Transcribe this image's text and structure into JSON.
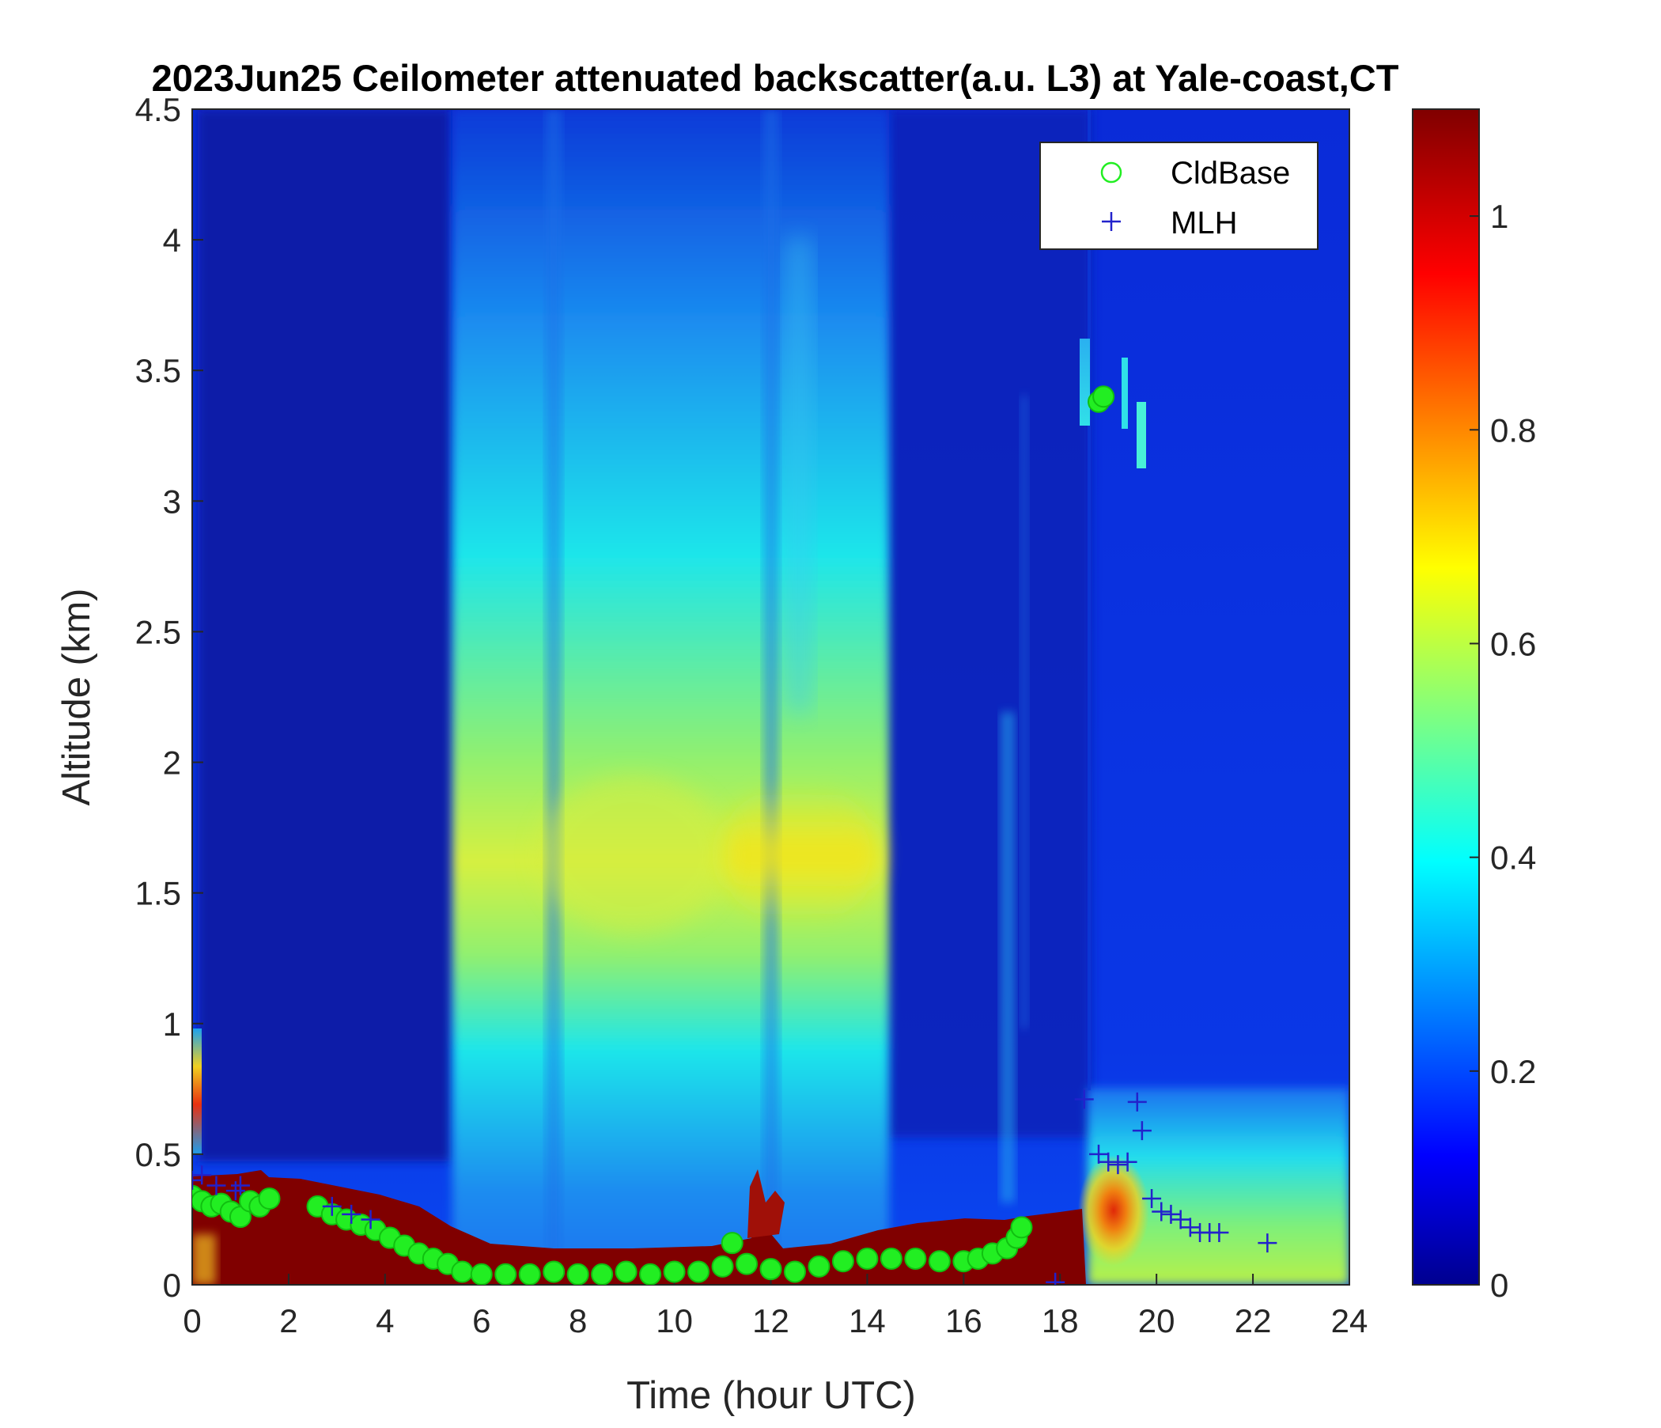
{
  "chart_data": {
    "type": "heatmap",
    "title": "2023Jun25 Ceilometer attenuated backscatter(a.u. L3) at Yale-coast,CT",
    "xlabel": "Time (hour UTC)",
    "ylabel": "Altitude (km)",
    "xlim": [
      0,
      24
    ],
    "ylim": [
      0,
      4.5
    ],
    "xticks": [
      "0",
      "2",
      "4",
      "6",
      "8",
      "10",
      "12",
      "14",
      "16",
      "18",
      "20",
      "22",
      "24"
    ],
    "yticks": [
      "0",
      "0.5",
      "1",
      "1.5",
      "2",
      "2.5",
      "3",
      "3.5",
      "4",
      "4.5"
    ],
    "colorbar": {
      "clim": [
        0,
        1.1
      ],
      "ticks": [
        "0",
        "0.2",
        "0.4",
        "0.6",
        "0.8",
        "1"
      ],
      "colormap": "jet"
    },
    "legend": {
      "position": "top-right",
      "entries": [
        {
          "label": "CldBase",
          "marker": "circle",
          "color": "#22ee22"
        },
        {
          "label": "MLH",
          "marker": "plus",
          "color": "#2222cc"
        }
      ]
    },
    "backscatter_regions": [
      {
        "t0": 5.3,
        "t1": 14.4,
        "z0": 0.0,
        "z1": 4.5,
        "peak": 0.62,
        "z_peak": 1.65,
        "note": "aerosol layer"
      },
      {
        "t0": 18.5,
        "t1": 24.0,
        "z0": 0.0,
        "z1": 0.75,
        "peak": 0.55,
        "z_peak": 0.3,
        "note": "boundary layer"
      },
      {
        "t0": 18.6,
        "t1": 19.9,
        "z0": 3.1,
        "z1": 3.6,
        "peak": 0.4,
        "z_peak": 3.35,
        "note": "thin cloud"
      }
    ],
    "series": [
      {
        "name": "CldBase",
        "marker": "circle",
        "color": "#22ee22",
        "x": [
          0.0,
          0.2,
          0.4,
          0.6,
          0.8,
          1.0,
          1.2,
          1.4,
          1.6,
          2.6,
          2.9,
          3.2,
          3.5,
          3.8,
          4.1,
          4.4,
          4.7,
          5.0,
          5.3,
          5.6,
          6.0,
          6.5,
          7.0,
          7.5,
          8.0,
          8.5,
          9.0,
          9.5,
          10.0,
          10.5,
          11.0,
          11.2,
          11.5,
          12.0,
          12.5,
          13.0,
          13.5,
          14.0,
          14.5,
          15.0,
          15.5,
          16.0,
          16.3,
          16.6,
          16.9,
          17.1,
          17.2,
          18.8,
          18.9
        ],
        "y": [
          0.34,
          0.32,
          0.3,
          0.31,
          0.28,
          0.26,
          0.32,
          0.3,
          0.33,
          0.3,
          0.27,
          0.25,
          0.23,
          0.21,
          0.18,
          0.15,
          0.12,
          0.1,
          0.08,
          0.05,
          0.04,
          0.04,
          0.04,
          0.05,
          0.04,
          0.04,
          0.05,
          0.04,
          0.05,
          0.05,
          0.07,
          0.16,
          0.08,
          0.06,
          0.05,
          0.07,
          0.09,
          0.1,
          0.1,
          0.1,
          0.09,
          0.09,
          0.1,
          0.12,
          0.14,
          0.18,
          0.22,
          3.38,
          3.4
        ]
      },
      {
        "name": "MLH",
        "marker": "plus",
        "color": "#2222cc",
        "x": [
          0.0,
          0.2,
          0.5,
          0.9,
          1.0,
          2.9,
          3.3,
          3.7,
          17.9,
          18.5,
          18.8,
          19.0,
          19.2,
          19.4,
          19.6,
          19.7,
          19.9,
          20.1,
          20.3,
          20.5,
          20.7,
          20.9,
          21.1,
          21.3,
          22.3
        ],
        "y": [
          0.4,
          0.42,
          0.38,
          0.36,
          0.38,
          0.3,
          0.27,
          0.25,
          0.01,
          0.71,
          0.5,
          0.47,
          0.46,
          0.47,
          0.7,
          0.59,
          0.33,
          0.28,
          0.27,
          0.25,
          0.22,
          0.2,
          0.2,
          0.2,
          0.16
        ]
      }
    ]
  }
}
